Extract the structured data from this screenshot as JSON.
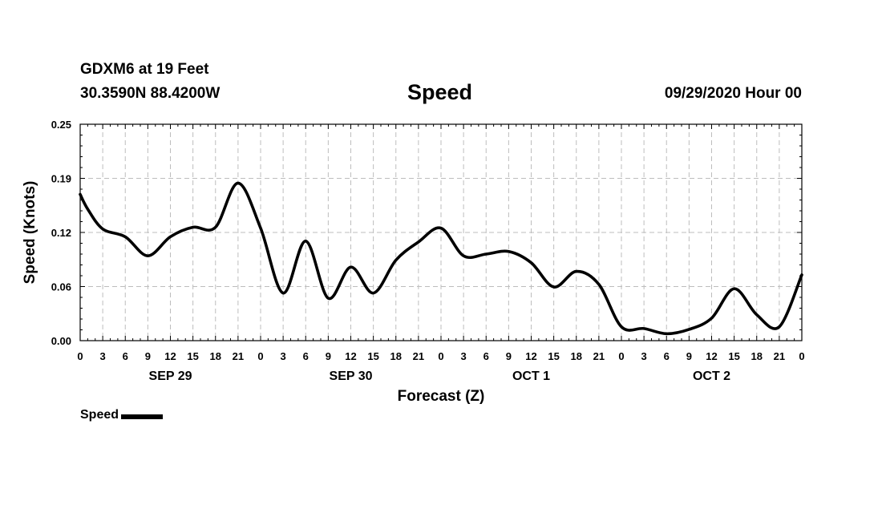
{
  "header": {
    "station": "GDXM6 at 19 Feet",
    "coordinates": "30.3590N 88.4200W",
    "title": "Speed",
    "datetime": "09/29/2020 Hour 00"
  },
  "legend": {
    "label": "Speed",
    "color": "#000000"
  },
  "chart_data": {
    "type": "line",
    "title": "Speed",
    "xlabel": "Forecast (Z)",
    "ylabel": "Speed (Knots)",
    "ylim": [
      0,
      0.25
    ],
    "yticks": [
      "0.00",
      "0.06",
      "0.12",
      "0.19",
      "0.25"
    ],
    "xlim": [
      0,
      96
    ],
    "xtick_labels": [
      "0",
      "3",
      "6",
      "9",
      "12",
      "15",
      "18",
      "21",
      "0",
      "3",
      "6",
      "9",
      "12",
      "15",
      "18",
      "21",
      "0",
      "3",
      "6",
      "9",
      "12",
      "15",
      "18",
      "21",
      "0",
      "3",
      "6",
      "9",
      "12",
      "15",
      "18",
      "21",
      "0"
    ],
    "day_labels": [
      {
        "label": "SEP 29",
        "hour": 12
      },
      {
        "label": "SEP 30",
        "hour": 36
      },
      {
        "label": "OCT 1",
        "hour": 60
      },
      {
        "label": "OCT 2",
        "hour": 84
      }
    ],
    "grid": true,
    "legend_position": "bottom-left",
    "series": [
      {
        "name": "Speed",
        "color": "#000000",
        "x": [
          0,
          1,
          3,
          6,
          9,
          12,
          15,
          18,
          21,
          24,
          27,
          30,
          33,
          36,
          39,
          42,
          45,
          48,
          51,
          54,
          57,
          60,
          63,
          66,
          69,
          72,
          75,
          78,
          81,
          84,
          87,
          90,
          93,
          96
        ],
        "y": [
          0.169,
          0.152,
          0.129,
          0.12,
          0.098,
          0.12,
          0.131,
          0.131,
          0.182,
          0.13,
          0.055,
          0.115,
          0.049,
          0.085,
          0.055,
          0.093,
          0.114,
          0.13,
          0.098,
          0.1,
          0.103,
          0.09,
          0.062,
          0.08,
          0.065,
          0.016,
          0.014,
          0.008,
          0.013,
          0.026,
          0.06,
          0.03,
          0.016,
          0.076
        ]
      }
    ]
  }
}
